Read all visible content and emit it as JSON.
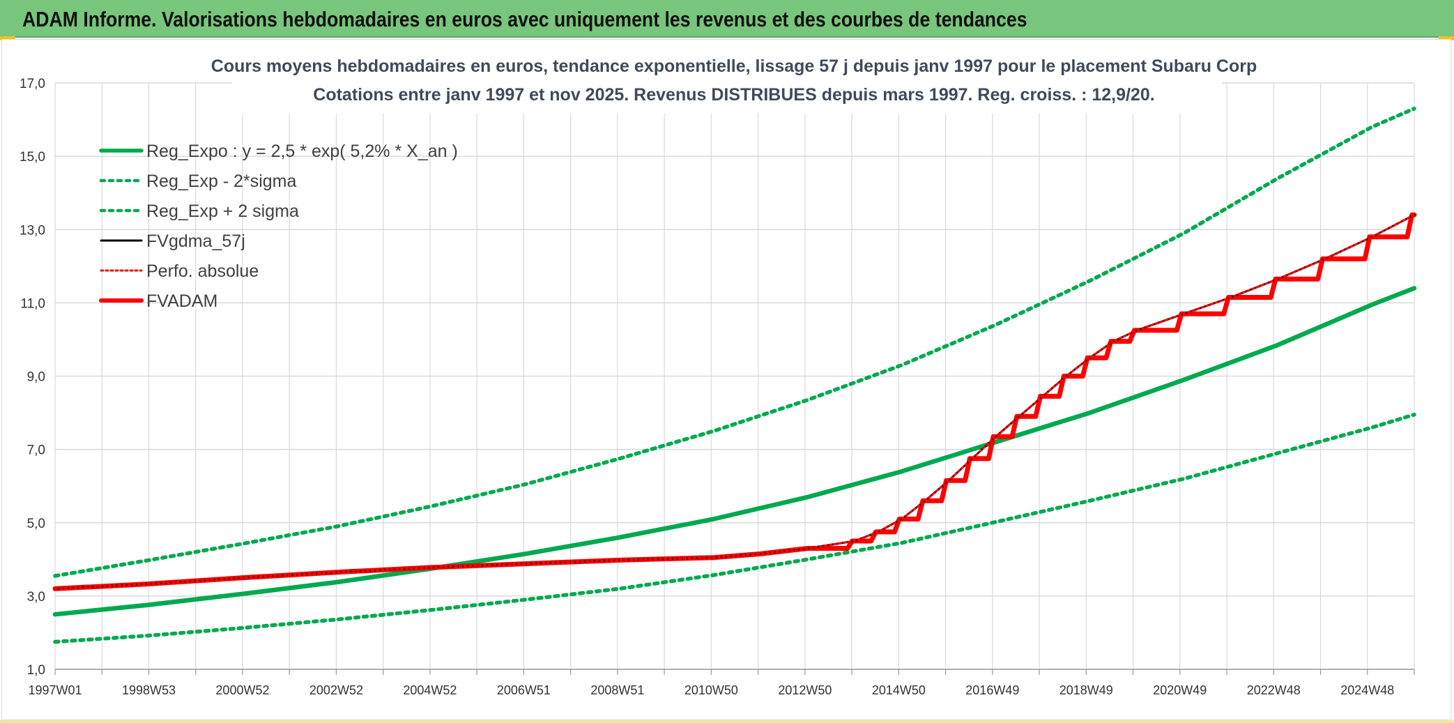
{
  "header": {
    "title": "ADAM Informe. Valorisations hebdomadaires en euros avec uniquement les revenus et des courbes de tendances"
  },
  "colors": {
    "header_bg": "#77c67b",
    "green": "#00a94f",
    "black": "#000000",
    "red": "#ff0000",
    "grid": "#d9d9d9"
  },
  "chart_data": {
    "type": "line",
    "title": "Cours moyens hebdomadaires en euros, tendance exponentielle, lissage 57 j depuis janv 1997 pour le placement Subaru Corp",
    "subtitle": "Cotations entre janv 1997 et nov 2025. Revenus DISTRIBUES depuis mars 1997. Reg. croiss. : 12,9/20.",
    "xlabel": "",
    "ylabel": "",
    "ylim": [
      1.0,
      17.0
    ],
    "y_ticks": [
      "1,0",
      "3,0",
      "5,0",
      "7,0",
      "9,0",
      "11,0",
      "13,0",
      "15,0",
      "17,0"
    ],
    "x_range": [
      1997.0,
      2025.9
    ],
    "x_tick_labels": [
      "1997W01",
      "1998W53",
      "2000W52",
      "2002W52",
      "2004W52",
      "2006W51",
      "2008W51",
      "2010W50",
      "2012W50",
      "2014W50",
      "2016W49",
      "2018W49",
      "2020W49",
      "2022W48",
      "2024W48"
    ],
    "grid": true,
    "legend_position": "top-left",
    "legend": [
      "Reg_Expo : y = 2,5 * exp( 5,2% *  X_an )",
      "Reg_Exp - 2*sigma",
      "Reg_Exp + 2 sigma",
      "FVgdma_57j",
      "Perfo. absolue",
      "FVADAM"
    ],
    "series": [
      {
        "name": "Reg_Expo : y = 2,5 * exp( 5,2% *  X_an )",
        "color": "#00a94f",
        "style": "solid",
        "x": [
          1997,
          1999,
          2001,
          2003,
          2005,
          2007,
          2009,
          2011,
          2013,
          2015,
          2017,
          2019,
          2021,
          2023,
          2025,
          2025.9
        ],
        "values": [
          2.5,
          2.76,
          3.06,
          3.38,
          3.75,
          4.15,
          4.6,
          5.1,
          5.7,
          6.4,
          7.2,
          8.0,
          8.9,
          9.85,
          10.95,
          11.4
        ]
      },
      {
        "name": "Reg_Exp - 2*sigma",
        "color": "#00a94f",
        "style": "dotted",
        "x": [
          1997,
          1999,
          2001,
          2003,
          2005,
          2007,
          2009,
          2011,
          2013,
          2015,
          2017,
          2019,
          2021,
          2023,
          2025,
          2025.9
        ],
        "values": [
          1.75,
          1.92,
          2.13,
          2.36,
          2.62,
          2.9,
          3.2,
          3.57,
          4.0,
          4.45,
          5.02,
          5.6,
          6.2,
          6.9,
          7.6,
          7.95
        ]
      },
      {
        "name": "Reg_Exp + 2 sigma",
        "color": "#00a94f",
        "style": "dotted",
        "x": [
          1997,
          1999,
          2001,
          2003,
          2005,
          2007,
          2009,
          2011,
          2013,
          2015,
          2017,
          2019,
          2021,
          2023,
          2025,
          2025.9
        ],
        "values": [
          3.55,
          3.98,
          4.43,
          4.9,
          5.45,
          6.05,
          6.75,
          7.5,
          8.35,
          9.3,
          10.4,
          11.6,
          12.9,
          14.4,
          15.8,
          16.3
        ]
      },
      {
        "name": "FVgdma_57j",
        "color": "#000000",
        "style": "solid",
        "x": [
          1997,
          1999,
          2001,
          2003,
          2005,
          2007,
          2009,
          2011,
          2012,
          2013,
          2014,
          2014.5,
          2015,
          2015.5,
          2016,
          2016.5,
          2017,
          2017.5,
          2018,
          2018.5,
          2019,
          2019.5,
          2020,
          2021,
          2022,
          2023,
          2024,
          2025,
          2025.9
        ],
        "values": [
          3.2,
          3.33,
          3.5,
          3.65,
          3.78,
          3.88,
          3.98,
          4.05,
          4.15,
          4.3,
          4.5,
          4.75,
          5.1,
          5.6,
          6.15,
          6.75,
          7.35,
          7.9,
          8.45,
          9.0,
          9.5,
          9.95,
          10.25,
          10.7,
          11.15,
          11.65,
          12.2,
          12.8,
          13.4
        ]
      },
      {
        "name": "Perfo. absolue",
        "color": "#ff0000",
        "style": "dotted",
        "x": [
          1997,
          1999,
          2001,
          2003,
          2005,
          2007,
          2009,
          2011,
          2012,
          2013,
          2014,
          2014.5,
          2015,
          2015.5,
          2016,
          2016.5,
          2017,
          2017.5,
          2018,
          2018.5,
          2019,
          2019.5,
          2020,
          2021,
          2022,
          2023,
          2024,
          2025,
          2025.9
        ],
        "values": [
          3.2,
          3.33,
          3.5,
          3.65,
          3.78,
          3.88,
          3.98,
          4.05,
          4.15,
          4.3,
          4.5,
          4.75,
          5.1,
          5.6,
          6.15,
          6.75,
          7.35,
          7.9,
          8.45,
          9.0,
          9.5,
          9.95,
          10.25,
          10.7,
          11.15,
          11.65,
          12.2,
          12.8,
          13.4
        ]
      },
      {
        "name": "FVADAM",
        "color": "#ff0000",
        "style": "solid",
        "stepped": true,
        "x": [
          1997,
          1999,
          2001,
          2003,
          2005,
          2007,
          2009,
          2011,
          2012,
          2013,
          2014,
          2014.5,
          2015,
          2015.5,
          2016,
          2016.5,
          2017,
          2017.5,
          2018,
          2018.5,
          2019,
          2019.5,
          2020,
          2021,
          2022,
          2023,
          2024,
          2025,
          2025.9
        ],
        "values": [
          3.2,
          3.33,
          3.5,
          3.65,
          3.78,
          3.88,
          3.98,
          4.05,
          4.15,
          4.3,
          4.5,
          4.75,
          5.1,
          5.6,
          6.15,
          6.75,
          7.35,
          7.9,
          8.45,
          9.0,
          9.5,
          9.95,
          10.25,
          10.7,
          11.15,
          11.65,
          12.2,
          12.8,
          13.4
        ]
      }
    ]
  }
}
